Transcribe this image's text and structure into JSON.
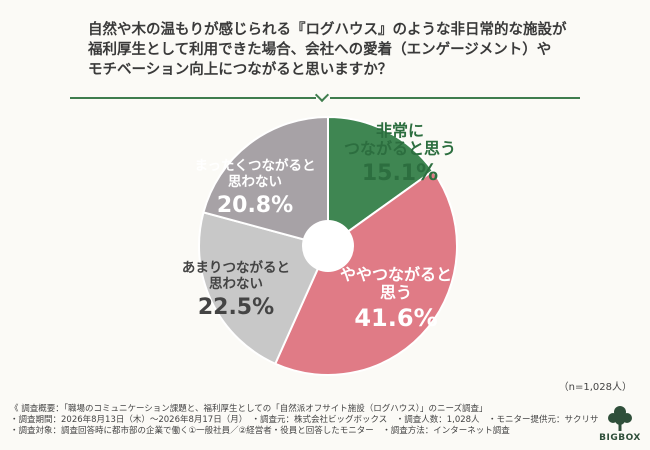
{
  "question": {
    "line1": "自然や木の温もりが感じられる『ログハウス』のような非日常的な施設が",
    "line2": "福利厚生として利用できた場合、会社への愛着（エンゲージメント）や",
    "line3": "モチベーション向上につながると思いますか？"
  },
  "chart_data": {
    "type": "pie",
    "categories": [
      "非常につながると思う",
      "ややつながると思う",
      "あまりつながると思わない",
      "まったくつながると思わない"
    ],
    "values": [
      15.1,
      41.6,
      22.5,
      20.8
    ],
    "unit": "%",
    "colors": [
      "#3f8652",
      "#e07b86",
      "#c8c8c8",
      "#a7a2a6"
    ],
    "labels": [
      {
        "line1": "非常に",
        "line2": "つながると思う",
        "value_text": "15.1%"
      },
      {
        "line1": "ややつながると",
        "line2": "思う",
        "value_text": "41.6%"
      },
      {
        "line1": "あまりつながると",
        "line2": "思わない",
        "value_text": "22.5%"
      },
      {
        "line1": "まったくつながると",
        "line2": "思わない",
        "value_text": "20.8%"
      }
    ]
  },
  "sample_size": "（n=1,028人）",
  "footer": {
    "line1": "《 調査概要：「職場のコミュニケーション課題と、福利厚生としての「自然派オフサイト施設（ログハウス）」のニーズ調査」",
    "line2": "・調査期間：2026年8月13日（木）～2026年8月17日（月）　・調査元：株式会社ビッグボックス　・調査人数：1,028人　・モニター提供元：サクリサ",
    "line3": "・調査対象：調査回答時に都市部の企業で働く①一般社員／②経営者・役員と回答したモニター　・調査方法：インターネット調査"
  },
  "logo": {
    "text": "BIGBOX",
    "icon": "tree-icon"
  }
}
